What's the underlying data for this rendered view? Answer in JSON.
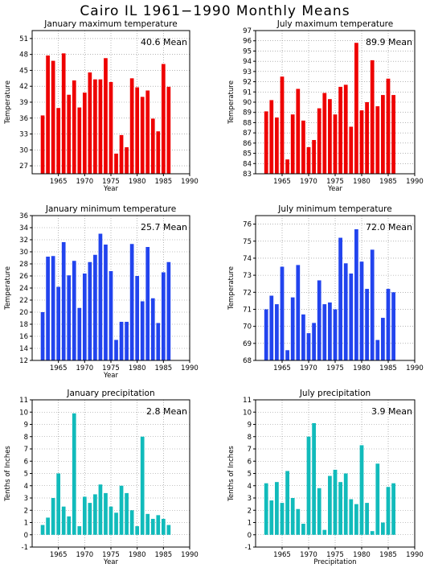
{
  "title": "Cairo IL   1961−1990 Monthly Means",
  "colors": {
    "max_temp": "#ee0000",
    "min_temp": "#2244ee",
    "precip": "#11bbbb",
    "grid": "#888888"
  },
  "chart_data": [
    {
      "type": "bar",
      "title": "January maximum temperature",
      "annotation": "40.6 Mean",
      "xlabel": "Year",
      "ylabel": "Temperature",
      "xlim": [
        1960,
        1990
      ],
      "ylim": [
        25.5,
        52.5
      ],
      "yticks": [
        27,
        30,
        33,
        36,
        39,
        42,
        45,
        48,
        51
      ],
      "xticks": [
        1965,
        1970,
        1975,
        1980,
        1985,
        1990
      ],
      "grid": true,
      "color": "#ee0000",
      "x": [
        1962,
        1963,
        1964,
        1965,
        1966,
        1967,
        1968,
        1969,
        1970,
        1971,
        1972,
        1973,
        1974,
        1975,
        1976,
        1977,
        1978,
        1979,
        1980,
        1981,
        1982,
        1983,
        1984,
        1985,
        1986,
        1987
      ],
      "values": [
        36.5,
        47.8,
        46.8,
        37.9,
        48.2,
        40.4,
        43.1,
        38.0,
        40.8,
        44.6,
        43.3,
        43.3,
        47.3,
        42.8,
        29.3,
        32.8,
        30.5,
        43.5,
        41.8,
        40.0,
        41.2,
        35.9,
        33.5,
        46.2,
        41.9,
        null
      ]
    },
    {
      "type": "bar",
      "title": "July maximum temperature",
      "annotation": "89.9 Mean",
      "xlabel": "Year",
      "ylabel": "Temperature",
      "xlim": [
        1960,
        1990
      ],
      "ylim": [
        83,
        97
      ],
      "yticks": [
        83,
        84,
        85,
        86,
        87,
        88,
        89,
        90,
        91,
        92,
        93,
        94,
        95,
        96,
        97
      ],
      "xticks": [
        1965,
        1970,
        1975,
        1980,
        1985,
        1990
      ],
      "grid": true,
      "color": "#ee0000",
      "x": [
        1962,
        1963,
        1964,
        1965,
        1966,
        1967,
        1968,
        1969,
        1970,
        1971,
        1972,
        1973,
        1974,
        1975,
        1976,
        1977,
        1978,
        1979,
        1980,
        1981,
        1982,
        1983,
        1984,
        1985,
        1986,
        1987
      ],
      "values": [
        89.1,
        90.2,
        88.5,
        92.5,
        84.4,
        88.8,
        91.3,
        88.2,
        85.6,
        86.3,
        89.4,
        90.9,
        90.3,
        88.8,
        91.5,
        91.7,
        87.6,
        95.8,
        89.2,
        90.0,
        94.1,
        89.6,
        90.7,
        92.3,
        90.7,
        null
      ]
    },
    {
      "type": "bar",
      "title": "January minimum temperature",
      "annotation": "25.7 Mean",
      "xlabel": "Year",
      "ylabel": "Temperature",
      "xlim": [
        1960,
        1990
      ],
      "ylim": [
        12,
        36
      ],
      "yticks": [
        12,
        14,
        16,
        18,
        20,
        22,
        24,
        26,
        28,
        30,
        32,
        34,
        36
      ],
      "xticks": [
        1965,
        1970,
        1975,
        1980,
        1985,
        1990
      ],
      "grid": true,
      "color": "#2244ee",
      "x": [
        1962,
        1963,
        1964,
        1965,
        1966,
        1967,
        1968,
        1969,
        1970,
        1971,
        1972,
        1973,
        1974,
        1975,
        1976,
        1977,
        1978,
        1979,
        1980,
        1981,
        1982,
        1983,
        1984,
        1985,
        1986,
        1987
      ],
      "values": [
        20.0,
        29.2,
        29.3,
        24.2,
        31.6,
        26.1,
        28.5,
        20.7,
        26.4,
        28.3,
        29.5,
        33.0,
        31.2,
        26.8,
        15.4,
        18.4,
        18.4,
        31.3,
        26.0,
        21.8,
        30.8,
        22.3,
        18.2,
        26.6,
        28.3,
        null
      ]
    },
    {
      "type": "bar",
      "title": "July minimum temperature",
      "annotation": "72.0 Mean",
      "xlabel": "",
      "ylabel": "Temperature",
      "xlim": [
        1960,
        1990
      ],
      "ylim": [
        68,
        76.5
      ],
      "yticks": [
        68,
        69,
        70,
        71,
        72,
        73,
        74,
        75,
        76
      ],
      "xticks": [
        1965,
        1970,
        1975,
        1980,
        1985,
        1990
      ],
      "grid": true,
      "color": "#2244ee",
      "x": [
        1962,
        1963,
        1964,
        1965,
        1966,
        1967,
        1968,
        1969,
        1970,
        1971,
        1972,
        1973,
        1974,
        1975,
        1976,
        1977,
        1978,
        1979,
        1980,
        1981,
        1982,
        1983,
        1984,
        1985,
        1986,
        1987
      ],
      "values": [
        71.0,
        71.8,
        71.3,
        73.5,
        68.6,
        71.7,
        73.6,
        70.7,
        69.6,
        70.2,
        72.7,
        71.3,
        71.4,
        71.0,
        75.2,
        73.7,
        73.1,
        75.7,
        73.8,
        72.2,
        74.5,
        69.2,
        70.5,
        72.2,
        72.0,
        null
      ]
    },
    {
      "type": "bar",
      "title": "January precipitation",
      "annotation": "2.8 Mean",
      "xlabel": "Year",
      "ylabel": "Tenths of Inches",
      "xlim": [
        1960,
        1990
      ],
      "ylim": [
        -1,
        11
      ],
      "yticks": [
        -1,
        0,
        1,
        2,
        3,
        4,
        5,
        6,
        7,
        8,
        9,
        10,
        11
      ],
      "xticks": [
        1965,
        1970,
        1975,
        1980,
        1985,
        1990
      ],
      "grid": true,
      "color": "#11bbbb",
      "x": [
        1962,
        1963,
        1964,
        1965,
        1966,
        1967,
        1968,
        1969,
        1970,
        1971,
        1972,
        1973,
        1974,
        1975,
        1976,
        1977,
        1978,
        1979,
        1980,
        1981,
        1982,
        1983,
        1984,
        1985,
        1986,
        1987
      ],
      "values": [
        0.8,
        1.4,
        3.0,
        5.0,
        2.3,
        1.5,
        9.9,
        0.7,
        3.1,
        2.6,
        3.3,
        4.1,
        3.4,
        2.3,
        1.8,
        4.0,
        3.4,
        2.0,
        0.7,
        8.0,
        1.7,
        1.3,
        1.6,
        1.3,
        0.8,
        null
      ]
    },
    {
      "type": "bar",
      "title": "July precipitation",
      "annotation": "3.9 Mean",
      "xlabel": "Precipitation",
      "ylabel": "Tenths of Inches",
      "xlim": [
        1960,
        1990
      ],
      "ylim": [
        -1,
        11
      ],
      "yticks": [
        -1,
        0,
        1,
        2,
        3,
        4,
        5,
        6,
        7,
        8,
        9,
        10,
        11
      ],
      "xticks": [
        1965,
        1970,
        1975,
        1980,
        1985,
        1990
      ],
      "grid": true,
      "color": "#11bbbb",
      "x": [
        1962,
        1963,
        1964,
        1965,
        1966,
        1967,
        1968,
        1969,
        1970,
        1971,
        1972,
        1973,
        1974,
        1975,
        1976,
        1977,
        1978,
        1979,
        1980,
        1981,
        1982,
        1983,
        1984,
        1985,
        1986,
        1987
      ],
      "values": [
        4.2,
        2.8,
        4.3,
        2.6,
        5.2,
        3.0,
        2.1,
        0.9,
        8.0,
        9.1,
        3.8,
        0.4,
        4.8,
        5.3,
        4.3,
        5.0,
        2.9,
        2.5,
        7.3,
        2.6,
        0.3,
        5.8,
        1.0,
        3.9,
        4.2,
        null
      ]
    }
  ]
}
